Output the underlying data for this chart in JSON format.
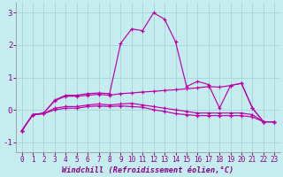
{
  "xlabel": "Windchill (Refroidissement éolien,°C)",
  "background_color": "#c5ecee",
  "line_color": "#bb00aa",
  "grid_color": "#a8d8da",
  "ylim": [
    -1.3,
    3.3
  ],
  "xlim": [
    -0.5,
    23.5
  ],
  "yticks": [
    -1,
    0,
    1,
    2,
    3
  ],
  "xticks": [
    0,
    1,
    2,
    3,
    4,
    5,
    6,
    7,
    8,
    9,
    10,
    11,
    12,
    13,
    14,
    15,
    16,
    17,
    18,
    19,
    20,
    21,
    22,
    23
  ],
  "series": [
    [
      -0.65,
      -0.15,
      -0.1,
      0.3,
      0.45,
      0.45,
      0.5,
      0.52,
      0.5,
      2.05,
      2.5,
      2.45,
      3.0,
      2.8,
      2.1,
      0.72,
      0.88,
      0.78,
      0.05,
      0.75,
      0.82,
      0.05,
      -0.37,
      -0.37
    ],
    [
      -0.65,
      -0.15,
      -0.1,
      0.28,
      0.42,
      0.42,
      0.45,
      0.48,
      0.45,
      0.5,
      0.52,
      0.55,
      0.57,
      0.6,
      0.62,
      0.65,
      0.68,
      0.72,
      0.7,
      0.75,
      0.82,
      0.05,
      -0.37,
      -0.37
    ],
    [
      -0.65,
      -0.15,
      -0.12,
      0.0,
      0.05,
      0.05,
      0.1,
      0.12,
      0.1,
      0.12,
      0.1,
      0.08,
      0.0,
      -0.05,
      -0.12,
      -0.15,
      -0.18,
      -0.18,
      -0.18,
      -0.18,
      -0.18,
      -0.22,
      -0.37,
      -0.37
    ],
    [
      -0.65,
      -0.15,
      -0.12,
      0.05,
      0.1,
      0.1,
      0.15,
      0.18,
      0.15,
      0.18,
      0.2,
      0.15,
      0.1,
      0.05,
      0.0,
      -0.05,
      -0.1,
      -0.1,
      -0.1,
      -0.1,
      -0.1,
      -0.15,
      -0.37,
      -0.37
    ]
  ]
}
